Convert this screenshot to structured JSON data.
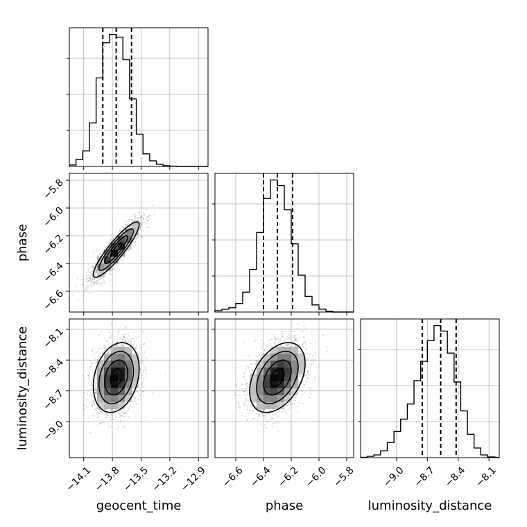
{
  "chart_data": {
    "type": "corner",
    "parameters": [
      "geocent_time",
      "phase",
      "luminosity_distance"
    ],
    "axis_labels": {
      "x": [
        "geocent_time",
        "phase",
        "luminosity_distance"
      ],
      "y": [
        "phase",
        "luminosity_distance"
      ]
    },
    "ranges": {
      "geocent_time": [
        -14.25,
        -12.8
      ],
      "phase": [
        -6.75,
        -5.75
      ],
      "luminosity_distance": [
        -9.35,
        -8.0
      ]
    },
    "ticks": {
      "geocent_time": [
        -14.1,
        -13.8,
        -13.5,
        -13.2,
        -12.9
      ],
      "phase": [
        -6.6,
        -6.4,
        -6.2,
        -6.0,
        -5.8
      ],
      "luminosity_distance": [
        -9.0,
        -8.7,
        -8.4,
        -8.1
      ]
    },
    "tick_labels": {
      "geocent_time": [
        "−14.1",
        "−13.8",
        "−13.5",
        "−13.2",
        "−12.9"
      ],
      "phase": [
        "−6.6",
        "−6.4",
        "−6.2",
        "−6.0",
        "−5.8"
      ],
      "luminosity_distance": [
        "−9.0",
        "−8.7",
        "−8.4",
        "−8.1"
      ]
    },
    "quantiles": {
      "geocent_time": [
        -13.9,
        -13.76,
        -13.6
      ],
      "phase": [
        -6.4,
        -6.3,
        -6.19
      ],
      "luminosity_distance": [
        -8.75,
        -8.57,
        -8.42
      ]
    },
    "histograms": {
      "geocent_time": {
        "edges": [
          -14.25,
          -14.18,
          -14.11,
          -14.04,
          -13.97,
          -13.9,
          -13.83,
          -13.76,
          -13.69,
          -13.62,
          -13.55,
          -13.48,
          -13.41,
          -13.34,
          -13.27,
          -13.2,
          -13.13,
          -13.06,
          -12.99,
          -12.92,
          -12.85
        ],
        "counts": [
          1,
          5,
          11,
          31,
          63,
          88,
          94,
          92,
          76,
          48,
          23,
          9,
          4,
          1.5,
          0.5,
          0.2,
          0,
          0,
          0,
          0
        ]
      },
      "phase": {
        "edges": [
          -6.75,
          -6.7,
          -6.65,
          -6.6,
          -6.55,
          -6.5,
          -6.45,
          -6.4,
          -6.35,
          -6.3,
          -6.25,
          -6.2,
          -6.15,
          -6.1,
          -6.05,
          -6.0,
          -5.95,
          -5.9,
          -5.85,
          -5.8,
          -5.75
        ],
        "counts": [
          1,
          2,
          3,
          6,
          14,
          30,
          56,
          80,
          93,
          89,
          72,
          48,
          26,
          11,
          5,
          2,
          0.5,
          0,
          0,
          0
        ]
      },
      "luminosity_distance": {
        "edges": [
          -9.35,
          -9.285,
          -9.22,
          -9.155,
          -9.09,
          -9.025,
          -8.96,
          -8.895,
          -8.83,
          -8.765,
          -8.7,
          -8.635,
          -8.57,
          -8.505,
          -8.44,
          -8.375,
          -8.31,
          -8.245,
          -8.18,
          -8.115,
          -8.05
        ],
        "counts": [
          0.3,
          1,
          2,
          5,
          11,
          19,
          28,
          39,
          56,
          70,
          85,
          96,
          92,
          76,
          55,
          34,
          17,
          7,
          2,
          0.5
        ]
      }
    },
    "pairs": [
      {
        "x": "geocent_time",
        "y": "phase",
        "mean": [
          -13.76,
          -6.3
        ],
        "sd": [
          0.12,
          0.1
        ],
        "rho": 0.9
      },
      {
        "x": "geocent_time",
        "y": "luminosity_distance",
        "mean": [
          -13.76,
          -8.57
        ],
        "sd": [
          0.12,
          0.17
        ],
        "rho": 0.25
      },
      {
        "x": "phase",
        "y": "luminosity_distance",
        "mean": [
          -6.3,
          -8.57
        ],
        "sd": [
          0.1,
          0.17
        ],
        "rho": 0.4
      }
    ],
    "contour_levels_sigma": [
      0.5,
      1.0,
      1.5,
      2.0
    ],
    "grid": true
  }
}
